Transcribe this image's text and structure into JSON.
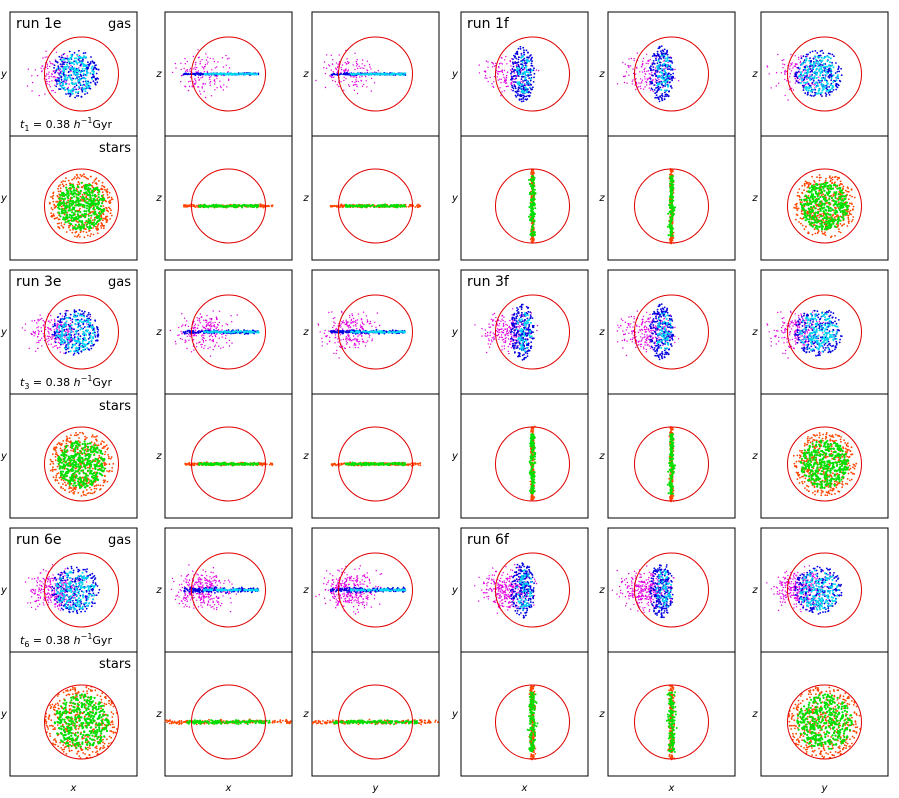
{
  "figure": {
    "rows": [
      {
        "time_label": {
          "t": "t",
          "sub": "1",
          "value": "= 0.38",
          "h": "h",
          "exp": "−1",
          "unit": "Gyr"
        },
        "runs": [
          {
            "label": "run 1e",
            "gas_label": "gas",
            "stars_label": "stars"
          },
          {
            "label": "run 1f"
          }
        ]
      },
      {
        "time_label": {
          "t": "t",
          "sub": "3",
          "value": "= 0.38",
          "h": "h",
          "exp": "−1",
          "unit": "Gyr"
        },
        "runs": [
          {
            "label": "run 3e",
            "gas_label": "gas",
            "stars_label": "stars"
          },
          {
            "label": "run 3f"
          }
        ]
      },
      {
        "time_label": {
          "t": "t",
          "sub": "6",
          "value": "= 0.38",
          "h": "h",
          "exp": "−1",
          "unit": "Gyr"
        },
        "runs": [
          {
            "label": "run 6e",
            "gas_label": "gas",
            "stars_label": "stars"
          },
          {
            "label": "run 6f"
          }
        ]
      }
    ],
    "axes": {
      "column_ylabels": [
        "y",
        "z",
        "z",
        "y",
        "z",
        "z"
      ],
      "bottom_xlabels": [
        "x",
        "x",
        "y",
        "x",
        "x",
        "y"
      ]
    },
    "colors": {
      "gas_cold": "#00d8f0",
      "gas_dense": "#0000e0",
      "gas_stripped": "#e000e0",
      "stars_old": "#ff4500",
      "stars_new": "#00e000",
      "circle": "#e00000"
    }
  }
}
